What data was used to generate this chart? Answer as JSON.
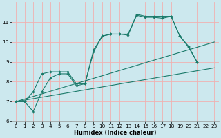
{
  "xlabel": "Humidex (Indice chaleur)",
  "background_color": "#cce8ee",
  "grid_color": "#f0b0b0",
  "line_color": "#1a7a6a",
  "xlim": [
    -0.5,
    23.5
  ],
  "ylim": [
    6.0,
    12.0
  ],
  "yticks": [
    6,
    7,
    8,
    9,
    10,
    11
  ],
  "xticks": [
    0,
    1,
    2,
    3,
    4,
    5,
    6,
    7,
    8,
    9,
    10,
    11,
    12,
    13,
    14,
    15,
    16,
    17,
    18,
    19,
    20,
    21,
    22,
    23
  ],
  "line1_x": [
    0,
    1,
    2,
    3,
    4,
    5,
    6,
    7,
    8,
    9,
    10,
    11,
    12,
    13,
    14,
    15,
    16,
    17,
    18,
    19,
    20,
    21
  ],
  "line1_y": [
    7.0,
    7.0,
    7.5,
    8.4,
    8.5,
    8.5,
    8.5,
    7.9,
    7.9,
    9.6,
    10.3,
    10.4,
    10.4,
    10.4,
    11.4,
    11.3,
    11.3,
    11.3,
    11.3,
    10.3,
    9.8,
    9.0
  ],
  "line2_x": [
    0,
    1,
    2,
    3,
    4,
    5,
    6,
    7,
    8,
    9,
    10,
    11,
    12,
    13,
    14,
    15,
    16,
    17,
    18,
    19,
    20,
    21
  ],
  "line2_y": [
    7.0,
    7.0,
    6.5,
    7.5,
    8.2,
    8.4,
    8.4,
    7.8,
    7.9,
    9.5,
    10.3,
    10.4,
    10.4,
    10.35,
    11.35,
    11.25,
    11.25,
    11.2,
    11.3,
    10.3,
    9.75,
    9.0
  ],
  "line3_x": [
    0,
    23
  ],
  "line3_y": [
    7.0,
    8.7
  ],
  "line4_x": [
    0,
    23
  ],
  "line4_y": [
    7.0,
    10.0
  ],
  "xlabel_fontsize": 6.0,
  "tick_fontsize": 5.2
}
